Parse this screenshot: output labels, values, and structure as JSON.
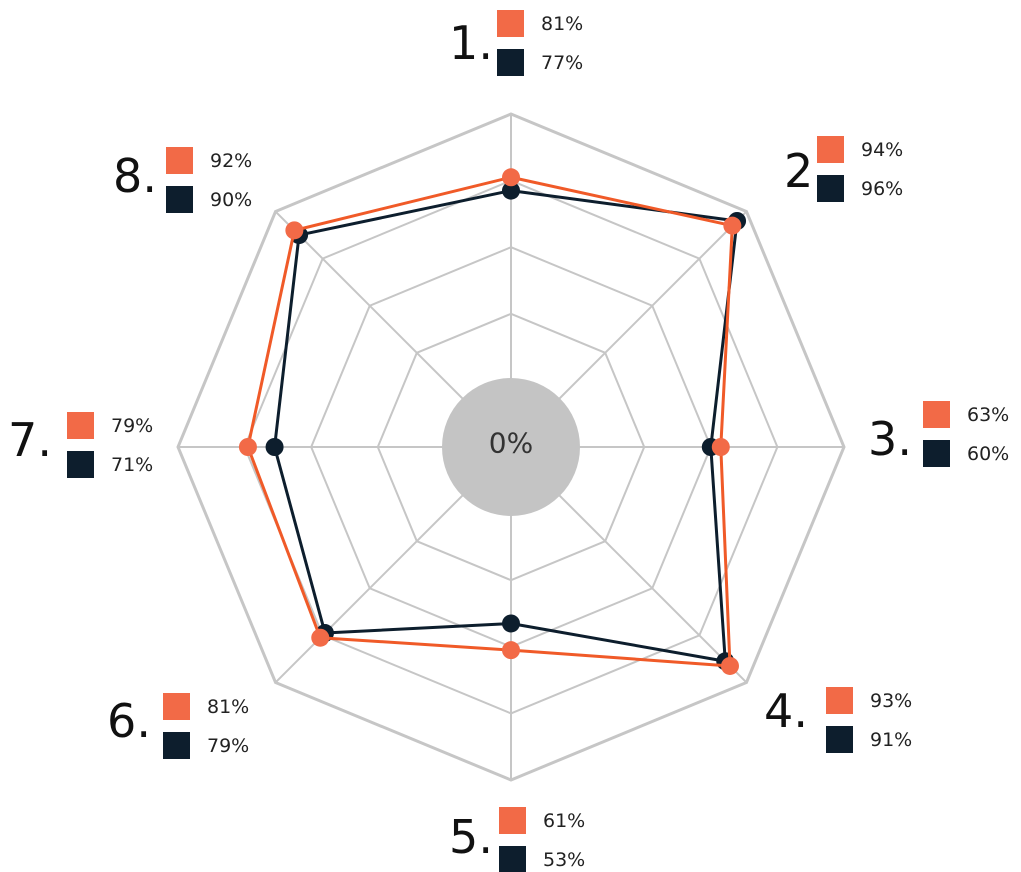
{
  "chart_data": {
    "type": "radar",
    "axes": [
      "1.",
      "2.",
      "3.",
      "4.",
      "5.",
      "6.",
      "7.",
      "8."
    ],
    "center_label": "0%",
    "range": [
      0,
      100
    ],
    "grid_rings": 5,
    "series": [
      {
        "values": [
          81,
          94,
          63,
          93,
          61,
          81,
          79,
          92
        ],
        "labels": [
          "81%",
          "94%",
          "63%",
          "93%",
          "61%",
          "81%",
          "79%",
          "92%"
        ],
        "color": "#f26a47",
        "line_color": "#f05a28"
      },
      {
        "values": [
          77,
          96,
          60,
          91,
          53,
          79,
          71,
          90
        ],
        "labels": [
          "77%",
          "96%",
          "60%",
          "91%",
          "53%",
          "79%",
          "71%",
          "90%"
        ],
        "color": "#0d1e2d",
        "line_color": "#0d1e2d"
      }
    ],
    "colors": {
      "grid": "#c6c6c6",
      "center_disc": "#c4c4c4"
    }
  }
}
